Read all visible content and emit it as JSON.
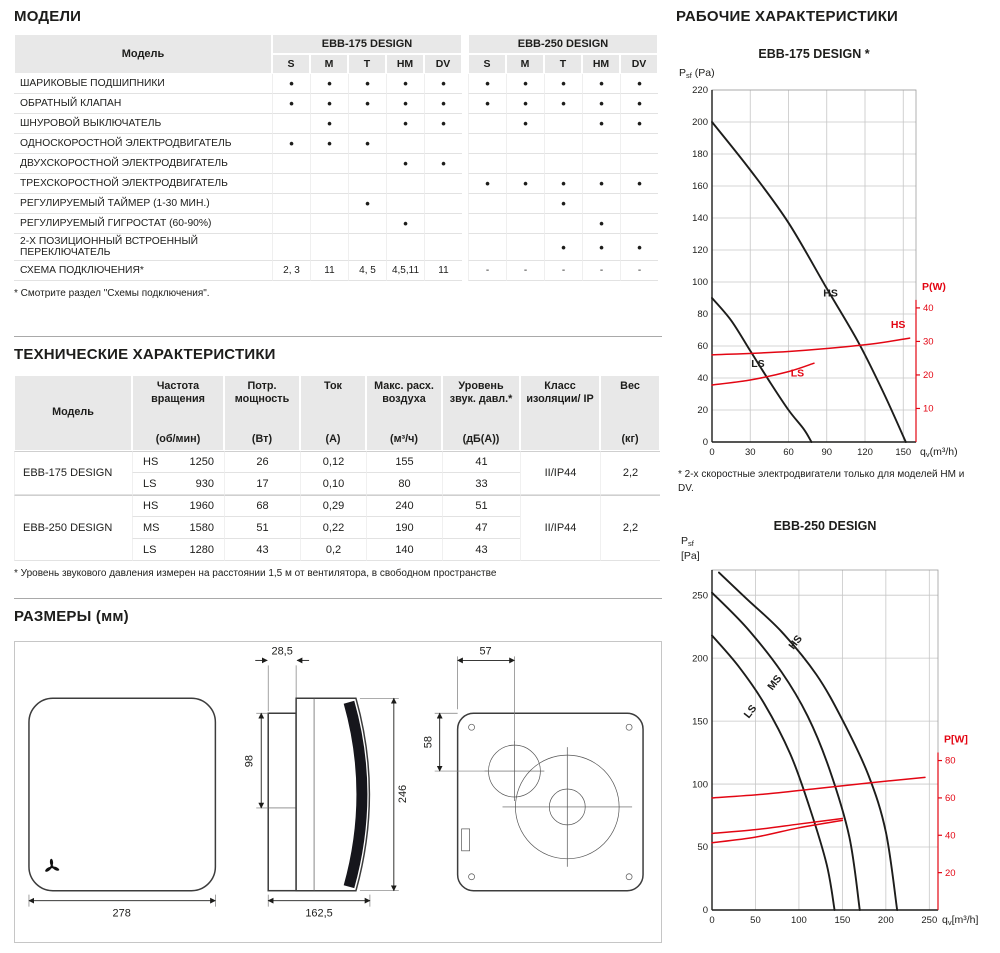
{
  "models": {
    "title": "МОДЕЛИ",
    "model_col": "Модель",
    "groups": [
      "EBB-175 DESIGN",
      "EBB-250 DESIGN"
    ],
    "sub_columns": [
      "S",
      "M",
      "T",
      "HM",
      "DV"
    ],
    "rows": [
      {
        "label": "ШАРИКОВЫЕ ПОДШИПНИКИ",
        "cells": [
          "•",
          "•",
          "•",
          "•",
          "•",
          "•",
          "•",
          "•",
          "•",
          "•"
        ]
      },
      {
        "label": "ОБРАТНЫЙ КЛАПАН",
        "cells": [
          "•",
          "•",
          "•",
          "•",
          "•",
          "•",
          "•",
          "•",
          "•",
          "•"
        ]
      },
      {
        "label": "ШНУРОВОЙ ВЫКЛЮЧАТЕЛЬ",
        "cells": [
          "",
          "•",
          "",
          "•",
          "•",
          "",
          "•",
          "",
          "•",
          "•"
        ]
      },
      {
        "label": "ОДНОСКОРОСТНОЙ ЭЛЕКТРОДВИГАТЕЛЬ",
        "cells": [
          "•",
          "•",
          "•",
          "",
          "",
          "",
          "",
          "",
          "",
          ""
        ]
      },
      {
        "label": "ДВУХСКОРОСТНОЙ ЭЛЕКТРОДВИГАТЕЛЬ",
        "cells": [
          "",
          "",
          "",
          "•",
          "•",
          "",
          "",
          "",
          "",
          ""
        ]
      },
      {
        "label": "ТРЕХСКОРОСТНОЙ ЭЛЕКТРОДВИГАТЕЛЬ",
        "cells": [
          "",
          "",
          "",
          "",
          "",
          "•",
          "•",
          "•",
          "•",
          "•"
        ]
      },
      {
        "label": "РЕГУЛИРУЕМЫЙ ТАЙМЕР (1-30 МИН.)",
        "cells": [
          "",
          "",
          "•",
          "",
          "",
          "",
          "",
          "•",
          "",
          ""
        ]
      },
      {
        "label": "РЕГУЛИРУЕМЫЙ ГИГРОСТАТ (60-90%)",
        "cells": [
          "",
          "",
          "",
          "•",
          "",
          "",
          "",
          "",
          "•",
          ""
        ]
      },
      {
        "label": "2-Х ПОЗИЦИОННЫЙ ВСТРОЕННЫЙ ПЕРЕКЛЮЧАТЕЛЬ",
        "cells": [
          "",
          "",
          "",
          "",
          "",
          "",
          "",
          "•",
          "•",
          "•"
        ]
      },
      {
        "label": "СХЕМА ПОДКЛЮЧЕНИЯ*",
        "cells": [
          "2, 3",
          "11",
          "4, 5",
          "4,5,11",
          "11",
          "-",
          "-",
          "-",
          "-",
          "-"
        ]
      }
    ],
    "footnote": "* Смотрите раздел \"Схемы подключения\"."
  },
  "tech": {
    "title": "ТЕХНИЧЕСКИЕ ХАРАКТЕРИСТИКИ",
    "columns": [
      {
        "title": "Модель",
        "unit": ""
      },
      {
        "title": "Частота вращения",
        "unit": "(об/мин)"
      },
      {
        "title": "Потр. мощность",
        "unit": "(Вт)"
      },
      {
        "title": "Ток",
        "unit": "(А)"
      },
      {
        "title": "Макс. расх. воздуха",
        "unit": "(м³/ч)"
      },
      {
        "title": "Уровень звук. давл.*",
        "unit": "(дБ(А))"
      },
      {
        "title": "Класс изоляции/ IP",
        "unit": ""
      },
      {
        "title": "Вес",
        "unit": "(кг)"
      }
    ],
    "groups": [
      {
        "model": "EBB-175 DESIGN",
        "insulation": "II/IP44",
        "weight": "2,2",
        "rows": [
          {
            "speed": "HS",
            "rpm": "1250",
            "power": "26",
            "current": "0,12",
            "airflow": "155",
            "noise": "41"
          },
          {
            "speed": "LS",
            "rpm": "930",
            "power": "17",
            "current": "0,10",
            "airflow": "80",
            "noise": "33"
          }
        ]
      },
      {
        "model": "EBB-250 DESIGN",
        "insulation": "II/IP44",
        "weight": "2,2",
        "rows": [
          {
            "speed": "HS",
            "rpm": "1960",
            "power": "68",
            "current": "0,29",
            "airflow": "240",
            "noise": "51"
          },
          {
            "speed": "MS",
            "rpm": "1580",
            "power": "51",
            "current": "0,22",
            "airflow": "190",
            "noise": "47"
          },
          {
            "speed": "LS",
            "rpm": "1280",
            "power": "43",
            "current": "0,2",
            "airflow": "140",
            "noise": "43"
          }
        ]
      }
    ],
    "footnote": "* Уровень звукового давления измерен на расстоянии 1,5 м от вентилятора, в свободном пространстве"
  },
  "dimensions": {
    "title": "РАЗМЕРЫ (мм)",
    "front_width": "278",
    "side_top": "28,5",
    "side_left": "98",
    "side_right": "246",
    "side_bottom": "162,5",
    "back_top": "57",
    "back_left": "58"
  },
  "performance": {
    "title": "РАБОЧИЕ ХАРАКТЕРИСТИКИ",
    "footnote": "* 2-х скоростные электродвигатели только для моделей HM и DV.",
    "accent_red": "#e30613",
    "curve_black": "#1d1d1b"
  },
  "chart_data": [
    {
      "type": "line",
      "title": "EBB-175 DESIGN *",
      "ylabel_sym": "P",
      "ylabel_sub": "sf",
      "ylabel_unit": "(Pa)",
      "xlabel_sym": "q",
      "xlabel_sub": "v",
      "xlabel_unit": "(m³/h)",
      "y2label": "P(W)",
      "xlim": [
        0,
        160
      ],
      "ylim": [
        0,
        220
      ],
      "y2lim": [
        0,
        105
      ],
      "xticks": [
        0,
        30,
        60,
        90,
        120,
        150
      ],
      "yticks": [
        0,
        20,
        40,
        60,
        80,
        100,
        120,
        140,
        160,
        180,
        200,
        220
      ],
      "y2ticks": [
        10,
        20,
        30,
        40
      ],
      "grid": true,
      "series": [
        {
          "name": "HS",
          "axis": "left",
          "color": "#1d1d1b",
          "label_at": [
            93,
            91
          ],
          "points": [
            [
              0,
              200
            ],
            [
              30,
              170
            ],
            [
              60,
              137
            ],
            [
              90,
              96
            ],
            [
              115,
              62
            ],
            [
              135,
              30
            ],
            [
              152,
              0
            ]
          ]
        },
        {
          "name": "LS",
          "axis": "left",
          "color": "#1d1d1b",
          "label_at": [
            36,
            47
          ],
          "points": [
            [
              0,
              90
            ],
            [
              15,
              76
            ],
            [
              30,
              57
            ],
            [
              45,
              38
            ],
            [
              60,
              20
            ],
            [
              72,
              8
            ],
            [
              78,
              0
            ]
          ]
        },
        {
          "name": "HS",
          "axis": "right",
          "color": "#e30613",
          "label_at": [
            146,
            34
          ],
          "points": [
            [
              0,
              26
            ],
            [
              60,
              27
            ],
            [
              120,
              29
            ],
            [
              155,
              31
            ]
          ]
        },
        {
          "name": "LS",
          "axis": "right",
          "color": "#e30613",
          "label_at": [
            67,
            19.5
          ],
          "points": [
            [
              0,
              17
            ],
            [
              30,
              18.5
            ],
            [
              60,
              21
            ],
            [
              80,
              23.5
            ]
          ]
        }
      ]
    },
    {
      "type": "line",
      "title": "EBB-250 DESIGN",
      "ylabel_sym": "P",
      "ylabel_sub": "sf",
      "ylabel_unit": "[Pa]",
      "xlabel_sym": "q",
      "xlabel_sub": "v",
      "xlabel_unit": "[m³/h]",
      "y2label": "P[W]",
      "xlim": [
        0,
        260
      ],
      "ylim": [
        0,
        270
      ],
      "y2lim": [
        0,
        182
      ],
      "xticks": [
        0,
        50,
        100,
        150,
        200,
        250
      ],
      "yticks": [
        0,
        50,
        100,
        150,
        200,
        250
      ],
      "y2ticks": [
        20,
        40,
        60,
        80
      ],
      "grid": true,
      "series": [
        {
          "name": "HS",
          "axis": "left",
          "color": "#1d1d1b",
          "label_at": [
            99,
            211
          ],
          "label_angle": -52,
          "points": [
            [
              8,
              268
            ],
            [
              40,
              247
            ],
            [
              80,
              221
            ],
            [
              120,
              187
            ],
            [
              150,
              151
            ],
            [
              180,
              107
            ],
            [
              200,
              62
            ],
            [
              213,
              0
            ]
          ]
        },
        {
          "name": "MS",
          "axis": "left",
          "color": "#1d1d1b",
          "label_at": [
            75,
            179
          ],
          "label_angle": -52,
          "points": [
            [
              0,
              252
            ],
            [
              40,
              224
            ],
            [
              80,
              189
            ],
            [
              110,
              154
            ],
            [
              135,
              112
            ],
            [
              158,
              58
            ],
            [
              170,
              0
            ]
          ]
        },
        {
          "name": "LS",
          "axis": "left",
          "color": "#1d1d1b",
          "label_at": [
            47,
            156
          ],
          "label_angle": -52,
          "points": [
            [
              0,
              218
            ],
            [
              30,
              194
            ],
            [
              60,
              164
            ],
            [
              90,
              124
            ],
            [
              112,
              82
            ],
            [
              132,
              36
            ],
            [
              141,
              0
            ]
          ]
        },
        {
          "name": "",
          "axis": "right",
          "color": "#e30613",
          "points": [
            [
              0,
              60
            ],
            [
              60,
              62
            ],
            [
              120,
              65
            ],
            [
              180,
              68
            ],
            [
              245,
              71
            ]
          ]
        },
        {
          "name": "",
          "axis": "right",
          "color": "#e30613",
          "points": [
            [
              0,
              41
            ],
            [
              50,
              43
            ],
            [
              100,
              46
            ],
            [
              150,
              49
            ]
          ]
        },
        {
          "name": "",
          "axis": "right",
          "color": "#e30613",
          "points": [
            [
              0,
              36
            ],
            [
              50,
              39
            ],
            [
              100,
              44
            ],
            [
              150,
              48
            ]
          ]
        }
      ]
    }
  ]
}
